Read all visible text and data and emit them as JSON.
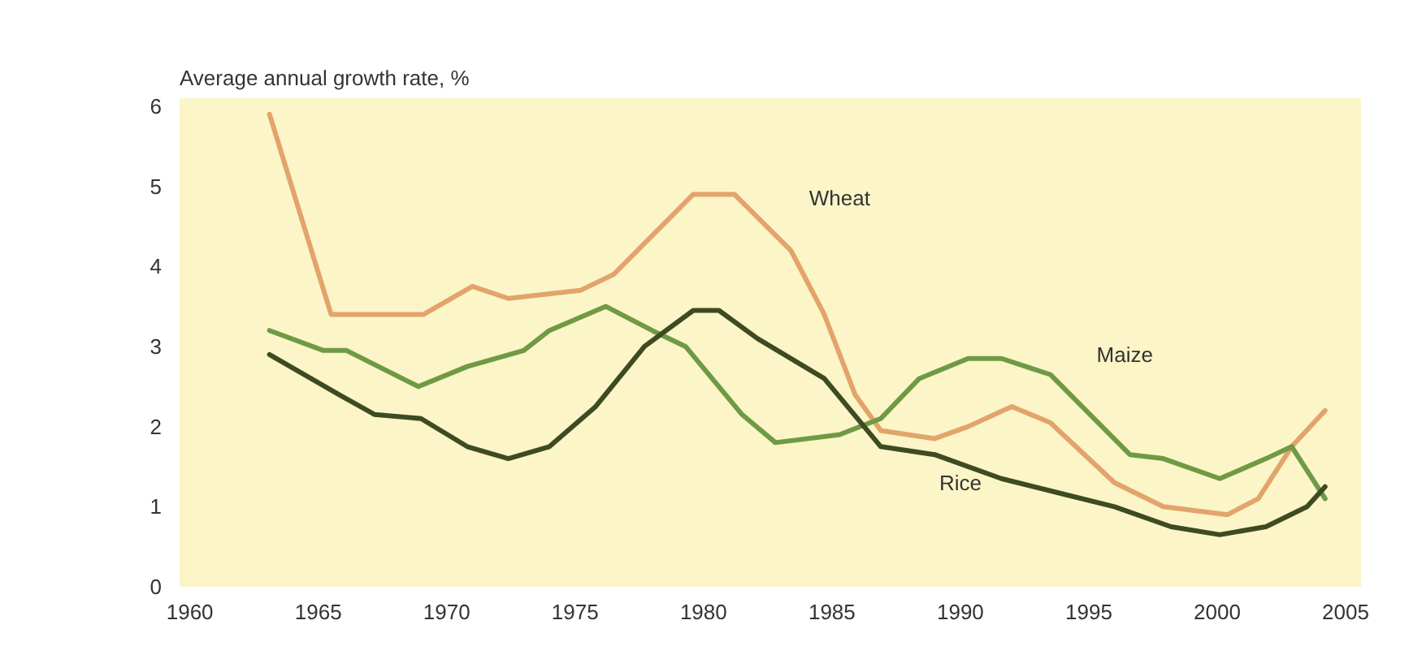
{
  "chart_data": {
    "type": "line",
    "ylabel": "Average annual growth rate, %",
    "xlim": [
      1959.6,
      2005.6
    ],
    "ylim": [
      0,
      6.1
    ],
    "xticks": [
      1960,
      1965,
      1970,
      1975,
      1980,
      1985,
      1990,
      1995,
      2000,
      2005
    ],
    "yticks": [
      0,
      1,
      2,
      3,
      4,
      5,
      6
    ],
    "grid": false,
    "legend": false,
    "marker": "none",
    "line_style": "solid",
    "series": [
      {
        "name": "Wheat",
        "color": "#e2a46a",
        "x": [
          1963.1,
          1965.5,
          1966.7,
          1969.1,
          1971,
          1972.4,
          1975.2,
          1976.5,
          1979.6,
          1981.2,
          1983.4,
          1984.7,
          1985.9,
          1986.9,
          1989,
          1990.3,
          1992,
          1993.5,
          1996,
          1997.9,
          2000.4,
          2001.6,
          2002.9,
          2004.2
        ],
        "values": [
          5.9,
          3.4,
          3.4,
          3.4,
          3.75,
          3.6,
          3.7,
          3.9,
          4.9,
          4.9,
          4.2,
          3.4,
          2.4,
          1.95,
          1.85,
          2.0,
          2.25,
          2.05,
          1.3,
          1.0,
          0.9,
          1.1,
          1.75,
          2.2
        ]
      },
      {
        "name": "Maize",
        "color": "#6f9a45",
        "x": [
          1963.1,
          1965.2,
          1966.1,
          1968.9,
          1970.8,
          1973,
          1974,
          1976.2,
          1978,
          1979.3,
          1981.5,
          1982.8,
          1985.3,
          1986.9,
          1988.4,
          1990.3,
          1991.6,
          1993.5,
          1996.6,
          1997.9,
          2000.1,
          2001.9,
          2002.9,
          2003.5,
          2004.2
        ],
        "values": [
          3.2,
          2.95,
          2.95,
          2.5,
          2.75,
          2.95,
          3.2,
          3.5,
          3.2,
          3.0,
          2.15,
          1.8,
          1.9,
          2.1,
          2.6,
          2.85,
          2.85,
          2.65,
          1.65,
          1.6,
          1.35,
          1.6,
          1.75,
          1.45,
          1.1
        ]
      },
      {
        "name": "Rice",
        "color": "#3e4a22",
        "x": [
          1963.1,
          1965.8,
          1967.2,
          1969,
          1970.8,
          1972.4,
          1974,
          1975.8,
          1977.7,
          1979.6,
          1980.6,
          1982.1,
          1984.7,
          1986.9,
          1989,
          1991.6,
          1994.1,
          1996,
          1998.2,
          2000.1,
          2001.9,
          2003.5,
          2004.2
        ],
        "values": [
          2.9,
          2.4,
          2.15,
          2.1,
          1.75,
          1.6,
          1.75,
          2.25,
          3.0,
          3.45,
          3.45,
          3.1,
          2.6,
          1.75,
          1.65,
          1.35,
          1.15,
          1.0,
          0.75,
          0.65,
          0.75,
          1.0,
          1.25
        ]
      }
    ]
  }
}
